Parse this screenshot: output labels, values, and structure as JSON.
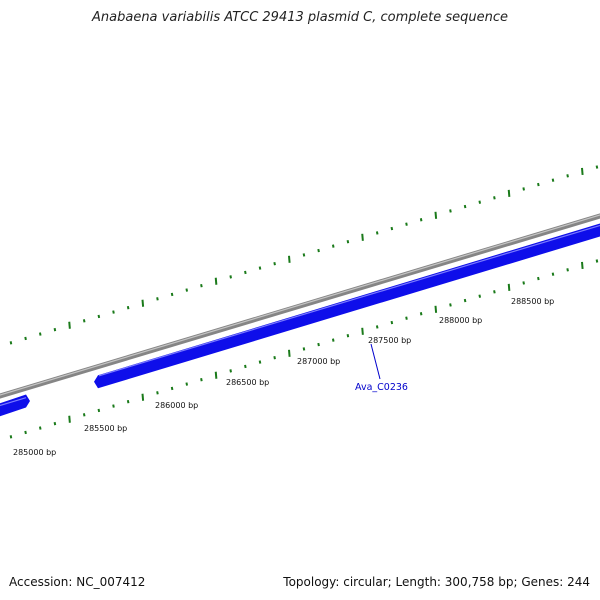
{
  "title": "Anabaena variabilis ATCC 29413 plasmid C, complete sequence",
  "footer": {
    "accession": "Accession: NC_007412",
    "stats": "Topology: circular; Length: 300,758 bp; Genes: 244"
  },
  "colors": {
    "backbone": "#858585",
    "backbone_highlight": "#c4c4c4",
    "gene_fill": "#0e0eea",
    "gene_highlight": "#7a7aff",
    "tick": "#1a7a1a",
    "gene_label": "#0000cc",
    "leader": "#0000cc"
  },
  "scale": {
    "labels": [
      "285000 bp",
      "285500 bp",
      "286000 bp",
      "286500 bp",
      "287000 bp",
      "287500 bp",
      "288000 bp",
      "288500 bp"
    ]
  },
  "genes": [
    {
      "label": ""
    },
    {
      "label": "Ava_C0236"
    }
  ]
}
